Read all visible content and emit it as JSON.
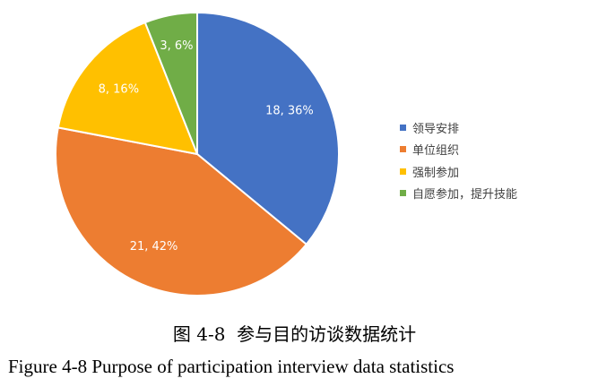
{
  "chart_data": {
    "type": "pie",
    "categories": [
      "领导安排",
      "单位组织",
      "强制参加",
      "自愿参加，提升技能"
    ],
    "values": [
      18,
      21,
      8,
      3
    ],
    "percentages": [
      "36%",
      "42%",
      "16%",
      "6%"
    ],
    "data_labels": [
      "18, 36%",
      "21, 42%",
      "8, 16%",
      "3, 6%"
    ],
    "colors": [
      "#4472C4",
      "#ED7D31",
      "#FFC000",
      "#70AD47"
    ],
    "legend_position": "right"
  },
  "caption": {
    "zh": "图 4-8  参与目的访谈数据统计",
    "en": "Figure 4-8 Purpose of participation interview data statistics"
  }
}
